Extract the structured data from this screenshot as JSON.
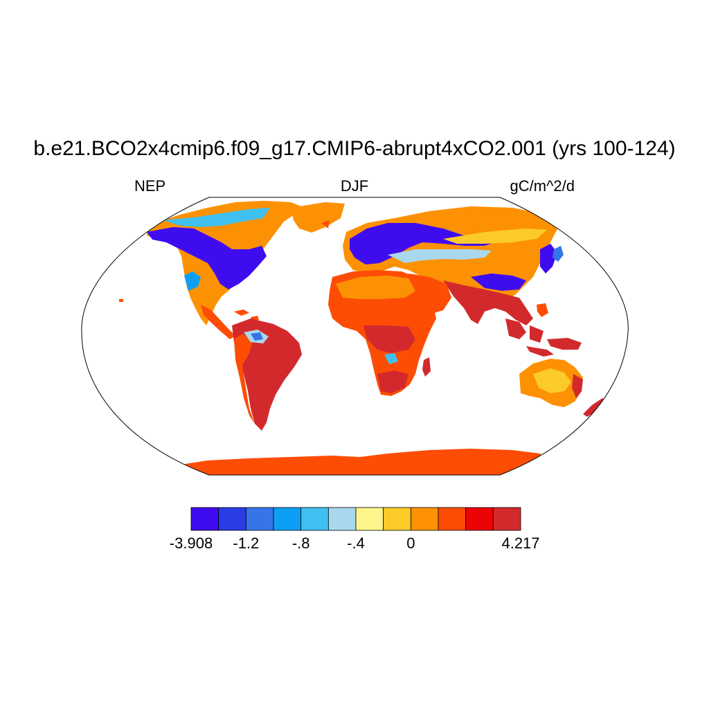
{
  "title": "b.e21.BCO2x4cmip6.f09_g17.CMIP6-abrupt4xCO2.001 (yrs 100-124)",
  "left_label": "NEP",
  "center_label": "DJF",
  "right_label": "gC/m^2/d",
  "colorbar": {
    "colors": [
      "#3f0cf0",
      "#2a3ce6",
      "#3575e8",
      "#0d9ff5",
      "#40c0f0",
      "#a9d8ee",
      "#fdf589",
      "#fccb2a",
      "#fd9104",
      "#fd4d05",
      "#ec0303",
      "#d22a2c"
    ],
    "labels": [
      {
        "text": "-3.908",
        "edge": 0
      },
      {
        "text": "-1.2",
        "edge": 2
      },
      {
        "text": "-.8",
        "edge": 4
      },
      {
        "text": "-.4",
        "edge": 6
      },
      {
        "text": "0",
        "edge": 8
      },
      {
        "text": "4.217",
        "edge": 12
      }
    ]
  }
}
